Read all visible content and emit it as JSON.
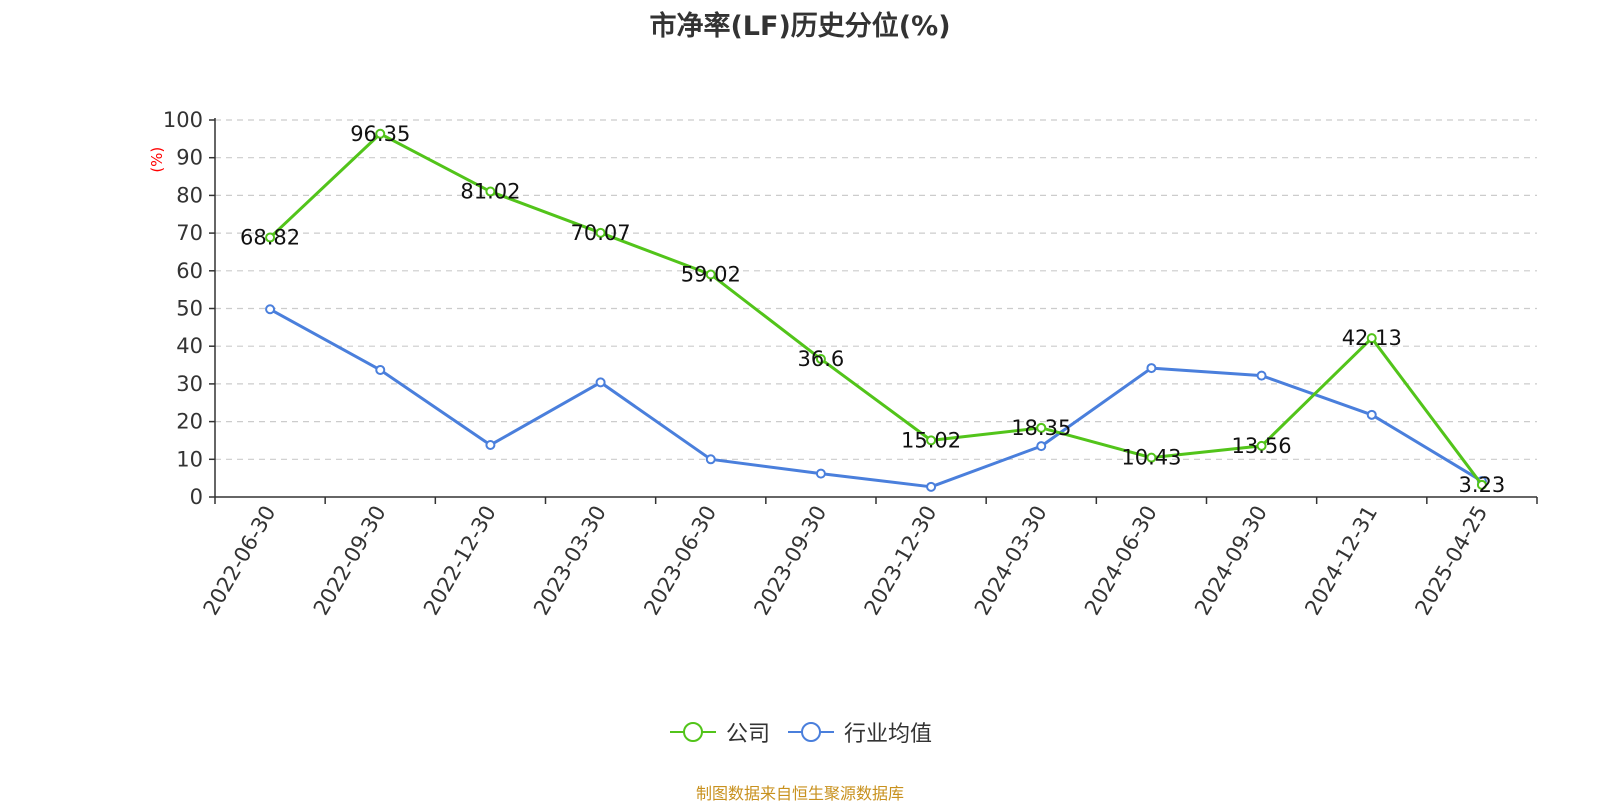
{
  "chart_data": {
    "type": "line",
    "title": "市净率(LF)历史分位(%)",
    "ylabel": "(%)",
    "xlabel": "",
    "ylim": [
      0,
      100
    ],
    "yticks": [
      0,
      10,
      20,
      30,
      40,
      50,
      60,
      70,
      80,
      90,
      100
    ],
    "grid": true,
    "legend_position": "bottom",
    "categories": [
      "2022-06-30",
      "2022-09-30",
      "2022-12-30",
      "2023-03-30",
      "2023-06-30",
      "2023-09-30",
      "2023-12-30",
      "2024-03-30",
      "2024-06-30",
      "2024-09-30",
      "2024-12-31",
      "2025-04-25"
    ],
    "series": [
      {
        "name": "公司",
        "color": "#52c41a",
        "values": [
          68.82,
          96.35,
          81.02,
          70.07,
          59.02,
          36.6,
          15.02,
          18.35,
          10.43,
          13.56,
          42.13,
          3.23
        ],
        "labels": [
          "68.82",
          "96.35",
          "81.02",
          "70.07",
          "59.02",
          "36.6",
          "15.02",
          "18.35",
          "10.43",
          "13.56",
          "42.13",
          "3.23"
        ],
        "show_labels": true
      },
      {
        "name": "行业均值",
        "color": "#4a7fdc",
        "values": [
          49.8,
          33.7,
          13.8,
          30.4,
          10.0,
          6.2,
          2.7,
          13.5,
          34.2,
          32.2,
          21.8,
          4.2
        ],
        "show_labels": false
      }
    ]
  },
  "footer": {
    "source": "制图数据来自恒生聚源数据库"
  }
}
